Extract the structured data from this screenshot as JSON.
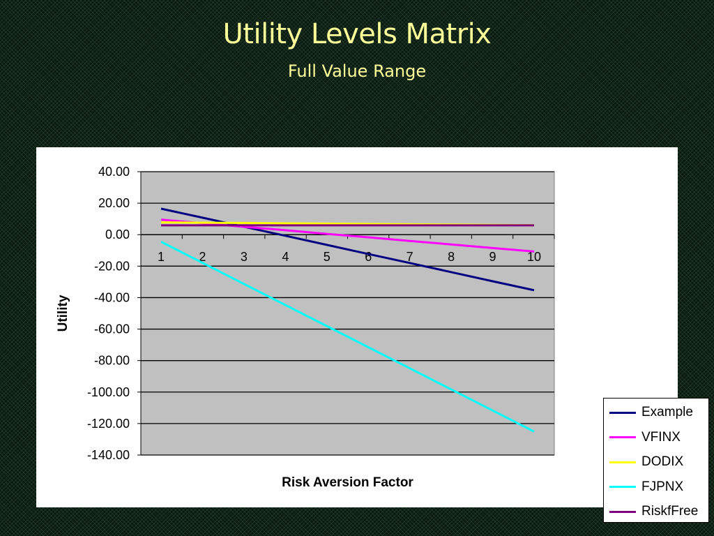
{
  "slide": {
    "title": "Utility Levels Matrix",
    "subtitle": "Full Value Range"
  },
  "colors": {
    "background": "#0b1a10",
    "title_text": "#ffff99",
    "plot_area": "#c0c0c0",
    "gridline": "#000000"
  },
  "chart_data": {
    "type": "line",
    "x": [
      1,
      2,
      3,
      4,
      5,
      6,
      7,
      8,
      9,
      10
    ],
    "x_tick_labels": [
      "1",
      "2",
      "3",
      "4",
      "5",
      "6",
      "7",
      "8",
      "9",
      "10"
    ],
    "y_tick_labels": [
      "40.00",
      "20.00",
      "0.00",
      "-20.00",
      "-40.00",
      "-60.00",
      "-80.00",
      "-100.00",
      "-120.00",
      "-140.00"
    ],
    "ylim": [
      -140,
      40
    ],
    "ytick_step": 20,
    "xlabel": "Risk Aversion Factor",
    "ylabel": "Utility",
    "grid": "horizontal",
    "legend_position": "right",
    "series": [
      {
        "name": "Example",
        "color": "#000080",
        "values": [
          16.5,
          10.8,
          5.0,
          -0.7,
          -6.5,
          -12.3,
          -18.0,
          -23.8,
          -29.6,
          -35.3
        ]
      },
      {
        "name": "VFINX",
        "color": "#ff00ff",
        "values": [
          9.5,
          7.3,
          5.0,
          2.8,
          0.5,
          -1.7,
          -4.0,
          -6.2,
          -8.5,
          -10.7
        ]
      },
      {
        "name": "DODIX",
        "color": "#ffff00",
        "values": [
          7.8,
          7.6,
          7.4,
          7.2,
          7.0,
          6.8,
          6.6,
          6.4,
          6.2,
          6.0
        ]
      },
      {
        "name": "FJPNX",
        "color": "#00ffff",
        "values": [
          -4.5,
          -17.9,
          -31.3,
          -44.7,
          -58.1,
          -71.5,
          -84.9,
          -98.3,
          -111.7,
          -125.1
        ]
      },
      {
        "name": "RiskfFree",
        "color": "#800080",
        "values": [
          5.9,
          5.9,
          5.9,
          5.9,
          5.9,
          5.9,
          5.9,
          5.9,
          5.9,
          5.9
        ]
      }
    ]
  }
}
